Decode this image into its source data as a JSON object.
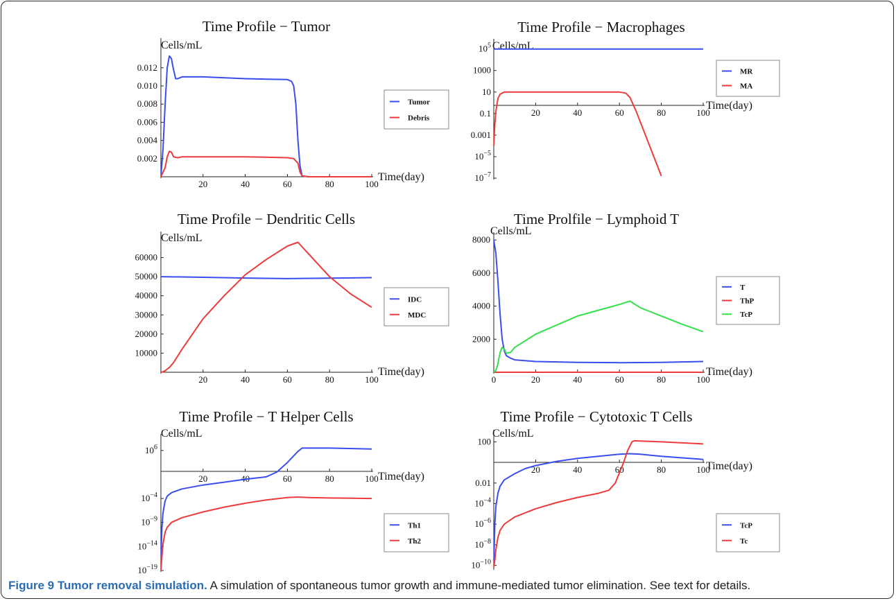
{
  "caption": {
    "label": "Figure 9 Tumor removal simulation.",
    "text": "A simulation of spontaneous tumor growth and immune-mediated tumor elimination. See text for details."
  },
  "colors": {
    "blue": "#3a4df0",
    "red": "#ee3a3a",
    "green": "#33e24a"
  },
  "chart_data": [
    {
      "id": "tumor",
      "type": "line",
      "title": "Time Profile − Tumor",
      "ylabel": "Cells/mL",
      "xlabel": "Time(day)",
      "xlim": [
        0,
        100
      ],
      "ylim": [
        0,
        0.0145
      ],
      "yscale": "linear",
      "xticks": [
        20,
        40,
        60,
        80,
        100
      ],
      "yticks": [
        {
          "v": 0.002,
          "t": "0.002"
        },
        {
          "v": 0.004,
          "t": "0.004"
        },
        {
          "v": 0.006,
          "t": "0.006"
        },
        {
          "v": 0.008,
          "t": "0.008"
        },
        {
          "v": 0.01,
          "t": "0.010"
        },
        {
          "v": 0.012,
          "t": "0.012"
        }
      ],
      "series": [
        {
          "name": "Tumor",
          "color": "blue",
          "x": [
            0,
            1,
            2,
            3,
            4,
            5,
            6,
            7,
            8,
            10,
            12,
            20,
            40,
            60,
            62,
            63,
            64,
            65,
            66,
            67,
            70,
            100
          ],
          "y": [
            0.0,
            0.003,
            0.008,
            0.012,
            0.0133,
            0.013,
            0.0118,
            0.0108,
            0.0108,
            0.011,
            0.011,
            0.011,
            0.0108,
            0.0107,
            0.0105,
            0.01,
            0.008,
            0.004,
            0.0012,
            0.0001,
            0.0,
            0.0
          ]
        },
        {
          "name": "Debris",
          "color": "red",
          "x": [
            0,
            2,
            3,
            4,
            5,
            6,
            8,
            10,
            20,
            40,
            60,
            63,
            65,
            66,
            67,
            70,
            100
          ],
          "y": [
            0.0,
            0.001,
            0.0022,
            0.0028,
            0.0027,
            0.0022,
            0.0021,
            0.0022,
            0.0022,
            0.0022,
            0.0021,
            0.002,
            0.0015,
            0.0005,
            0.0001,
            0.0,
            0.0
          ]
        }
      ]
    },
    {
      "id": "macro",
      "type": "line",
      "title": "Time Profile − Macrophages",
      "ylabel": "Cells/mL",
      "xlabel": "Time(day)",
      "xlim": [
        0,
        100
      ],
      "ylim": [
        -7,
        5.3
      ],
      "yscale": "log10",
      "xticks": [
        20,
        40,
        60,
        80,
        100
      ],
      "yticks": [
        {
          "v": 5,
          "t": "10^5"
        },
        {
          "v": 3,
          "t": "1000"
        },
        {
          "v": 1,
          "t": "10"
        },
        {
          "v": -1,
          "t": "0.1"
        },
        {
          "v": -3,
          "t": "0.001"
        },
        {
          "v": -5,
          "t": "10^-5"
        },
        {
          "v": -7,
          "t": "10^-7"
        }
      ],
      "series": [
        {
          "name": "MR",
          "color": "blue",
          "x": [
            0,
            100
          ],
          "y": [
            5.0,
            5.0
          ]
        },
        {
          "name": "MA",
          "color": "red",
          "x": [
            0,
            0.5,
            1,
            2,
            3,
            5,
            10,
            40,
            60,
            63,
            65,
            68,
            80
          ],
          "y": [
            -4.0,
            -2.0,
            -0.8,
            0.4,
            0.8,
            1.0,
            1.0,
            1.0,
            1.0,
            0.9,
            0.5,
            -0.8,
            -6.8
          ]
        }
      ]
    },
    {
      "id": "dc",
      "type": "line",
      "title": "Time Profile − Dendritic Cells",
      "ylabel": "Cells/mL",
      "xlabel": "Time(day)",
      "xlim": [
        0,
        100
      ],
      "ylim": [
        0,
        70000
      ],
      "yscale": "linear",
      "xticks": [
        20,
        40,
        60,
        80,
        100
      ],
      "yticks": [
        {
          "v": 10000,
          "t": "10000"
        },
        {
          "v": 20000,
          "t": "20000"
        },
        {
          "v": 30000,
          "t": "30000"
        },
        {
          "v": 40000,
          "t": "40000"
        },
        {
          "v": 50000,
          "t": "50000"
        },
        {
          "v": 60000,
          "t": "60000"
        }
      ],
      "series": [
        {
          "name": "IDC",
          "color": "blue",
          "x": [
            0,
            20,
            40,
            60,
            80,
            100
          ],
          "y": [
            50000,
            49700,
            49300,
            49000,
            49200,
            49500
          ]
        },
        {
          "name": "MDC",
          "color": "red",
          "x": [
            0,
            1,
            2,
            4,
            6,
            10,
            20,
            30,
            40,
            50,
            60,
            65,
            70,
            80,
            90,
            100
          ],
          "y": [
            0,
            200,
            800,
            2500,
            5000,
            12000,
            28000,
            40000,
            51000,
            59000,
            66000,
            68000,
            62000,
            50000,
            41000,
            34000
          ]
        }
      ]
    },
    {
      "id": "lymph",
      "type": "line",
      "title": "Time Prolfile − Lymphoid T",
      "ylabel": "Cells/mL",
      "xlabel": "Time(day)",
      "xlim": [
        0,
        100
      ],
      "ylim": [
        0,
        8050
      ],
      "yscale": "linear",
      "xticks": [
        0,
        20,
        40,
        60,
        80,
        100
      ],
      "yticks": [
        {
          "v": 2000,
          "t": "2000"
        },
        {
          "v": 4000,
          "t": "4000"
        },
        {
          "v": 6000,
          "t": "6000"
        },
        {
          "v": 8000,
          "t": "8000"
        }
      ],
      "series": [
        {
          "name": "T",
          "color": "blue",
          "x": [
            0,
            1,
            2,
            3,
            4,
            5,
            6,
            8,
            10,
            20,
            40,
            60,
            80,
            100
          ],
          "y": [
            8000,
            7200,
            5500,
            3500,
            2000,
            1300,
            1000,
            850,
            750,
            650,
            600,
            580,
            600,
            650
          ]
        },
        {
          "name": "ThP",
          "color": "red",
          "x": [
            0,
            2,
            4,
            100
          ],
          "y": [
            0,
            0,
            0,
            0
          ]
        },
        {
          "name": "TcP",
          "color": "green",
          "x": [
            0,
            1,
            2,
            3,
            4,
            5,
            6,
            8,
            10,
            20,
            40,
            60,
            65,
            70,
            80,
            90,
            100
          ],
          "y": [
            0,
            100,
            500,
            1200,
            1500,
            1400,
            1150,
            1200,
            1500,
            2300,
            3400,
            4100,
            4300,
            3900,
            3400,
            2900,
            2450
          ]
        }
      ]
    },
    {
      "id": "th",
      "type": "line",
      "title": "Time Profile − T Helper Cells",
      "ylabel": "Cells/mL",
      "xlabel": "Time(day)",
      "xlim": [
        0,
        100
      ],
      "ylim": [
        -19,
        8
      ],
      "yscale": "log10",
      "xticks": [
        20,
        40,
        60,
        80,
        100
      ],
      "yticks": [
        {
          "v": 6,
          "t": "10^6"
        },
        {
          "v": -4,
          "t": "10^-4"
        },
        {
          "v": -9,
          "t": "10^-9"
        },
        {
          "v": -14,
          "t": "10^-14"
        },
        {
          "v": -19,
          "t": "10^-19"
        }
      ],
      "series": [
        {
          "name": "Th1",
          "color": "blue",
          "x": [
            0,
            0.5,
            1,
            2,
            3,
            5,
            10,
            20,
            30,
            40,
            50,
            55,
            60,
            65,
            67,
            80,
            100
          ],
          "y": [
            -17,
            -10,
            -7,
            -4.5,
            -3.5,
            -2.8,
            -2.0,
            -1.2,
            -0.6,
            0.0,
            0.5,
            1.5,
            3.5,
            5.8,
            6.5,
            6.5,
            6.3
          ]
        },
        {
          "name": "Th2",
          "color": "red",
          "x": [
            0,
            0.5,
            1,
            2,
            3,
            5,
            10,
            20,
            30,
            40,
            50,
            60,
            65,
            70,
            80,
            100
          ],
          "y": [
            -19,
            -16,
            -13.5,
            -11,
            -10,
            -9,
            -8,
            -6.8,
            -5.8,
            -5.0,
            -4.3,
            -3.8,
            -3.7,
            -3.8,
            -3.9,
            -4.0
          ]
        }
      ]
    },
    {
      "id": "tc",
      "type": "line",
      "title": "Time Profile − Cytotoxic T Cells",
      "ylabel": "Cells/mL",
      "xlabel": "Time(day)",
      "xlim": [
        0,
        100
      ],
      "ylim": [
        -10.3,
        2.5
      ],
      "yscale": "log10",
      "xticks": [
        20,
        40,
        60,
        80,
        100
      ],
      "yticks": [
        {
          "v": 2,
          "t": "100"
        },
        {
          "v": -2,
          "t": "0.01"
        },
        {
          "v": -4,
          "t": "10^-4"
        },
        {
          "v": -6,
          "t": "10^-6"
        },
        {
          "v": -8,
          "t": "10^-8"
        },
        {
          "v": -10,
          "t": "10^-10"
        }
      ],
      "series": [
        {
          "name": "TcP",
          "color": "blue",
          "x": [
            0,
            0.5,
            1,
            2,
            3,
            5,
            10,
            15,
            20,
            30,
            40,
            50,
            60,
            65,
            70,
            80,
            100
          ],
          "y": [
            -10,
            -6,
            -4.3,
            -3.0,
            -2.3,
            -1.7,
            -1.1,
            -0.6,
            -0.3,
            0.1,
            0.4,
            0.6,
            0.8,
            0.85,
            0.8,
            0.6,
            0.3
          ]
        },
        {
          "name": "Tc",
          "color": "red",
          "x": [
            0,
            0.5,
            1,
            2,
            3,
            5,
            10,
            20,
            30,
            40,
            50,
            55,
            58,
            60,
            62,
            64,
            66,
            67,
            80,
            100
          ],
          "y": [
            -10.2,
            -9.5,
            -8.5,
            -7.3,
            -6.6,
            -6.0,
            -5.3,
            -4.5,
            -3.9,
            -3.4,
            -3.0,
            -2.7,
            -2.0,
            -1.0,
            0.0,
            1.2,
            2.0,
            2.1,
            2.0,
            1.8
          ]
        }
      ]
    }
  ]
}
